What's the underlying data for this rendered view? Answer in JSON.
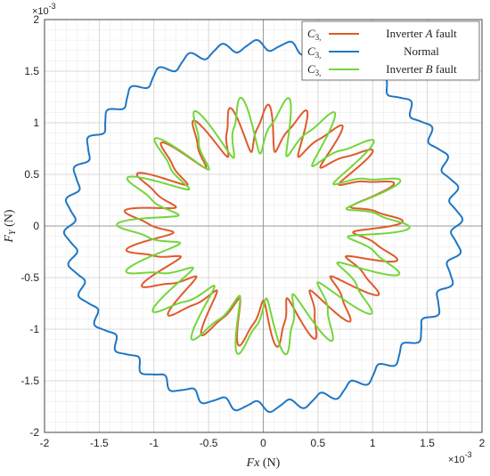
{
  "chart_data": {
    "type": "line",
    "xlabel": {
      "main": "Fx",
      "unit": " (N)"
    },
    "ylabel": {
      "main": "F",
      "sub": "Y",
      "unit": " (N)"
    },
    "x_multiplier": {
      "base": "×10",
      "exp": "-3"
    },
    "y_multiplier": {
      "base": "×10",
      "exp": "-3"
    },
    "xlim": [
      -2,
      2
    ],
    "ylim": [
      -2,
      2
    ],
    "xticks": [
      "-2",
      "-1.5",
      "-1",
      "-0.5",
      "0",
      "0.5",
      "1",
      "1.5",
      "2"
    ],
    "yticks": [
      "-2",
      "-1.5",
      "-1",
      "-0.5",
      "0",
      "0.5",
      "1",
      "1.5",
      "2"
    ],
    "grid": true,
    "legend_position": "top-right",
    "series": [
      {
        "name": "Inverter A fault",
        "legend_parts": [
          "Inverter ",
          "A",
          " fault"
        ],
        "prefix": "C",
        "prefix_sub": "3,",
        "color": "#e05a2b",
        "shape": {
          "r0": 1.0,
          "a1": 0.0,
          "a2": 0.05,
          "a3": 0.0,
          "n": 21,
          "an": 0.2,
          "n2": 42,
          "an2": 0.06,
          "phase": 0.4
        }
      },
      {
        "name": "Normal",
        "legend_parts": [
          "Normal"
        ],
        "prefix": "C",
        "prefix_sub": "3,",
        "color": "#1f77c4",
        "shape": {
          "r0": 1.76,
          "a1": 0.0,
          "a2": 0.01,
          "a3": 0.0,
          "n": 36,
          "an": 0.05,
          "n2": 72,
          "an2": 0.01,
          "phase": 0.0
        }
      },
      {
        "name": "Inverter B fault",
        "legend_parts": [
          "Inverter ",
          "B",
          " fault"
        ],
        "prefix": "C",
        "prefix_sub": "3,",
        "color": "#73d63a",
        "shape": {
          "r0": 1.02,
          "a1": 0.0,
          "a2": 0.04,
          "a3": 0.0,
          "n": 18,
          "an": 0.24,
          "n2": 36,
          "an2": 0.08,
          "phase": 1.3
        }
      }
    ]
  }
}
